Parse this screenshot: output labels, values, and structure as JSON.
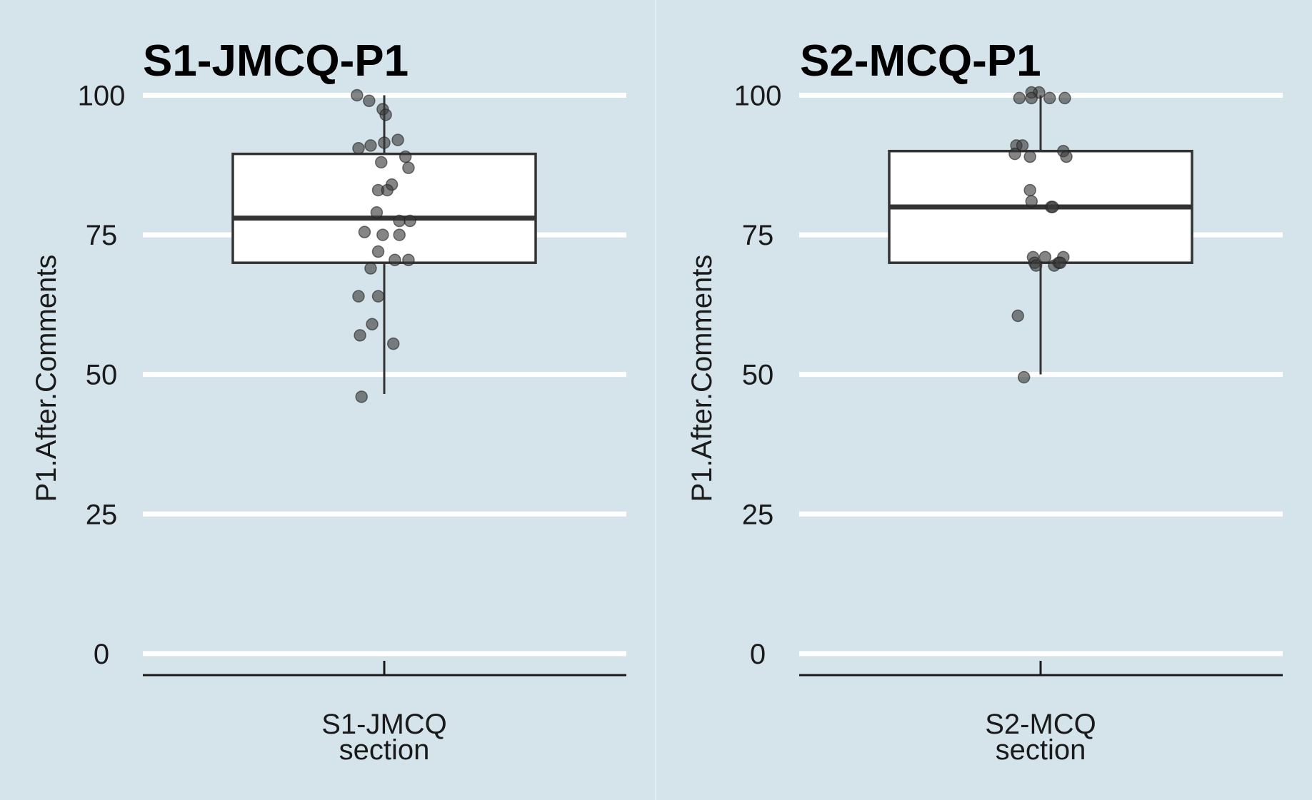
{
  "colors": {
    "background": "#d5e4eb",
    "gridline": "#ffffff",
    "box_fill": "#ffffff",
    "box_stroke": "#333333",
    "point": "#3a3a3a",
    "axis": "#1a1a1a"
  },
  "chart_data": [
    {
      "type": "box",
      "title": "S1-JMCQ-P1",
      "xlabel": "section",
      "ylabel": "P1.After.Comments",
      "ylim": [
        -5,
        103
      ],
      "yticks": [
        0,
        25,
        50,
        75,
        100
      ],
      "grid": true,
      "categories": [
        "S1-JMCQ"
      ],
      "box": {
        "min": 46.5,
        "q1": 70,
        "median": 78,
        "q3": 89.5,
        "max": 100
      },
      "points": [
        {
          "x": -0.18,
          "y": 100
        },
        {
          "x": -0.1,
          "y": 99
        },
        {
          "x": -0.01,
          "y": 97.5
        },
        {
          "x": 0.01,
          "y": 96.5
        },
        {
          "x": -0.17,
          "y": 90.5
        },
        {
          "x": -0.09,
          "y": 91
        },
        {
          "x": 0.0,
          "y": 91.5
        },
        {
          "x": 0.09,
          "y": 92
        },
        {
          "x": 0.14,
          "y": 89
        },
        {
          "x": -0.02,
          "y": 88
        },
        {
          "x": 0.16,
          "y": 87
        },
        {
          "x": 0.05,
          "y": 84
        },
        {
          "x": -0.04,
          "y": 83
        },
        {
          "x": 0.02,
          "y": 83
        },
        {
          "x": -0.05,
          "y": 79
        },
        {
          "x": 0.1,
          "y": 77.5
        },
        {
          "x": 0.17,
          "y": 77.5
        },
        {
          "x": -0.13,
          "y": 75.5
        },
        {
          "x": -0.01,
          "y": 75
        },
        {
          "x": 0.1,
          "y": 75
        },
        {
          "x": -0.04,
          "y": 72
        },
        {
          "x": 0.07,
          "y": 70.5
        },
        {
          "x": 0.16,
          "y": 70.5
        },
        {
          "x": -0.09,
          "y": 69
        },
        {
          "x": -0.17,
          "y": 64
        },
        {
          "x": -0.04,
          "y": 64
        },
        {
          "x": -0.08,
          "y": 59
        },
        {
          "x": -0.16,
          "y": 57
        },
        {
          "x": 0.06,
          "y": 55.5
        },
        {
          "x": -0.15,
          "y": 46
        }
      ]
    },
    {
      "type": "box",
      "title": "S2-MCQ-P1",
      "xlabel": "section",
      "ylabel": "P1.After.Comments",
      "ylim": [
        -5,
        103
      ],
      "yticks": [
        0,
        25,
        50,
        75,
        100
      ],
      "grid": true,
      "categories": [
        "S2-MCQ"
      ],
      "box": {
        "min": 50,
        "q1": 70,
        "median": 80,
        "q3": 90,
        "max": 100
      },
      "points": [
        {
          "x": -0.01,
          "y": 100.5
        },
        {
          "x": -0.06,
          "y": 100.5
        },
        {
          "x": -0.14,
          "y": 99.5
        },
        {
          "x": -0.06,
          "y": 99.5
        },
        {
          "x": 0.06,
          "y": 99.5
        },
        {
          "x": 0.16,
          "y": 99.5
        },
        {
          "x": -0.16,
          "y": 91
        },
        {
          "x": -0.12,
          "y": 91
        },
        {
          "x": -0.17,
          "y": 89.5
        },
        {
          "x": -0.07,
          "y": 89
        },
        {
          "x": 0.15,
          "y": 90
        },
        {
          "x": 0.17,
          "y": 89
        },
        {
          "x": -0.07,
          "y": 83
        },
        {
          "x": -0.06,
          "y": 81
        },
        {
          "x": 0.07,
          "y": 80
        },
        {
          "x": 0.08,
          "y": 80
        },
        {
          "x": -0.05,
          "y": 71
        },
        {
          "x": 0.03,
          "y": 71
        },
        {
          "x": -0.04,
          "y": 70
        },
        {
          "x": -0.03,
          "y": 69.5
        },
        {
          "x": 0.09,
          "y": 69.5
        },
        {
          "x": 0.12,
          "y": 70
        },
        {
          "x": 0.15,
          "y": 71
        },
        {
          "x": 0.13,
          "y": 70
        },
        {
          "x": -0.15,
          "y": 60.5
        },
        {
          "x": -0.11,
          "y": 49.5
        }
      ]
    }
  ]
}
